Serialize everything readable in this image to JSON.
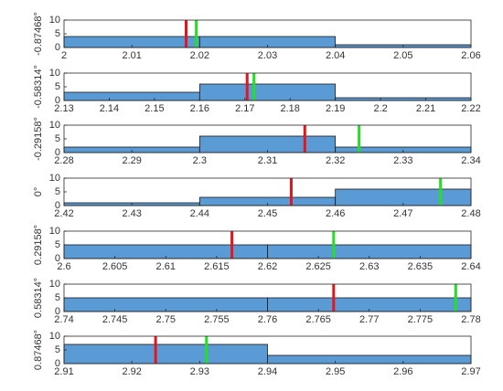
{
  "chart_data": [
    {
      "type": "histogram",
      "ylabel": "-0.87468°",
      "bins": [
        2,
        2.02,
        2.04,
        2.06
      ],
      "counts": [
        4,
        4,
        1
      ],
      "color": "#5b9bd5",
      "xlim": [
        2,
        2.06
      ],
      "xticks": [
        2,
        2.01,
        2.02,
        2.03,
        2.04,
        2.05,
        2.06
      ],
      "ylim": [
        0,
        10
      ],
      "yticks": [
        0,
        5,
        10
      ],
      "vlines": [
        {
          "color": "#e8141c",
          "x": 2.018
        },
        {
          "color": "#22e022",
          "x": 2.0195
        }
      ]
    },
    {
      "type": "histogram",
      "ylabel": "-0.58314°",
      "bins": [
        2.13,
        2.16,
        2.19,
        2.22
      ],
      "counts": [
        3,
        6,
        1
      ],
      "color": "#5b9bd5",
      "xlim": [
        2.13,
        2.22
      ],
      "xticks": [
        2.13,
        2.14,
        2.15,
        2.16,
        2.17,
        2.18,
        2.19,
        2.2,
        2.21,
        2.22
      ],
      "ylim": [
        0,
        10
      ],
      "yticks": [
        0,
        5,
        10
      ],
      "vlines": [
        {
          "color": "#e8141c",
          "x": 2.1705
        },
        {
          "color": "#22e022",
          "x": 2.172
        }
      ]
    },
    {
      "type": "histogram",
      "ylabel": "-0.29158°",
      "bins": [
        2.28,
        2.3,
        2.32,
        2.34
      ],
      "counts": [
        2,
        6,
        2
      ],
      "color": "#5b9bd5",
      "xlim": [
        2.28,
        2.34
      ],
      "xticks": [
        2.28,
        2.29,
        2.3,
        2.31,
        2.32,
        2.33,
        2.34
      ],
      "ylim": [
        0,
        10
      ],
      "yticks": [
        0,
        5,
        10
      ],
      "vlines": [
        {
          "color": "#e8141c",
          "x": 2.3155
        },
        {
          "color": "#22e022",
          "x": 2.3235
        }
      ]
    },
    {
      "type": "histogram",
      "ylabel": "0°",
      "bins": [
        2.42,
        2.44,
        2.46,
        2.48
      ],
      "counts": [
        1,
        3,
        6
      ],
      "color": "#5b9bd5",
      "xlim": [
        2.42,
        2.48
      ],
      "xticks": [
        2.42,
        2.43,
        2.44,
        2.45,
        2.46,
        2.47,
        2.48
      ],
      "ylim": [
        0,
        10
      ],
      "yticks": [
        0,
        5,
        10
      ],
      "vlines": [
        {
          "color": "#e8141c",
          "x": 2.4535
        },
        {
          "color": "#22e022",
          "x": 2.4755
        }
      ]
    },
    {
      "type": "histogram",
      "ylabel": "0.29158°",
      "bins": [
        2.6,
        2.62,
        2.64
      ],
      "counts": [
        5,
        5
      ],
      "color": "#5b9bd5",
      "xlim": [
        2.6,
        2.64
      ],
      "xticks": [
        2.6,
        2.605,
        2.61,
        2.615,
        2.62,
        2.625,
        2.63,
        2.635,
        2.64
      ],
      "ylim": [
        0,
        10
      ],
      "yticks": [
        0,
        5,
        10
      ],
      "vlines": [
        {
          "color": "#e8141c",
          "x": 2.6165
        },
        {
          "color": "#22e022",
          "x": 2.6265
        }
      ]
    },
    {
      "type": "histogram",
      "ylabel": "0.58314°",
      "bins": [
        2.74,
        2.76,
        2.78
      ],
      "counts": [
        5,
        5
      ],
      "color": "#5b9bd5",
      "xlim": [
        2.74,
        2.78
      ],
      "xticks": [
        2.74,
        2.745,
        2.75,
        2.755,
        2.76,
        2.765,
        2.77,
        2.775,
        2.78
      ],
      "ylim": [
        0,
        10
      ],
      "yticks": [
        0,
        5,
        10
      ],
      "vlines": [
        {
          "color": "#e8141c",
          "x": 2.7665
        },
        {
          "color": "#22e022",
          "x": 2.7785
        }
      ]
    },
    {
      "type": "histogram",
      "ylabel": "0.87468°",
      "bins": [
        2.91,
        2.94,
        2.97
      ],
      "counts": [
        7,
        3
      ],
      "color": "#5b9bd5",
      "xlim": [
        2.91,
        2.97
      ],
      "xticks": [
        2.91,
        2.92,
        2.93,
        2.94,
        2.95,
        2.96,
        2.97
      ],
      "ylim": [
        0,
        10
      ],
      "yticks": [
        0,
        5,
        10
      ],
      "vlines": [
        {
          "color": "#e8141c",
          "x": 2.9235
        },
        {
          "color": "#22e022",
          "x": 2.931
        }
      ]
    }
  ]
}
